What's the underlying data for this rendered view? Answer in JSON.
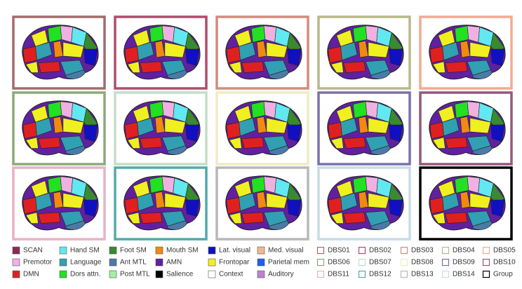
{
  "subjects": [
    {
      "label": "DBS01",
      "color": "#a26c6c"
    },
    {
      "label": "DBS02",
      "color": "#b04c6c"
    },
    {
      "label": "DBS03",
      "color": "#d28c7c"
    },
    {
      "label": "DBS04",
      "color": "#b8b88c"
    },
    {
      "label": "DBS05",
      "color": "#f2aa92"
    },
    {
      "label": "DBS06",
      "color": "#8aaa7a"
    },
    {
      "label": "DBS07",
      "color": "#c4dec8"
    },
    {
      "label": "DBS08",
      "color": "#f0ecc2"
    },
    {
      "label": "DBS09",
      "color": "#7a72aa"
    },
    {
      "label": "DBS10",
      "color": "#925a7a"
    },
    {
      "label": "DBS11",
      "color": "#e8b2c2"
    },
    {
      "label": "DBS12",
      "color": "#52aaaa"
    },
    {
      "label": "DBS13",
      "color": "#b8b8b8"
    },
    {
      "label": "DBS14",
      "color": "#c8dce6"
    },
    {
      "label": "Group",
      "color": "#000000"
    }
  ],
  "networks": [
    {
      "label": "SCAN",
      "color": "#8b2a5a"
    },
    {
      "label": "Premotor",
      "color": "#f0b0e2"
    },
    {
      "label": "DMN",
      "color": "#e02020"
    },
    {
      "label": "Hand SM",
      "color": "#62e8f0"
    },
    {
      "label": "Language",
      "color": "#30a0b2"
    },
    {
      "label": "Dors attn.",
      "color": "#22e022"
    },
    {
      "label": "Foot SM",
      "color": "#3a8a30"
    },
    {
      "label": "Ant MTL",
      "color": "#4a7aa8"
    },
    {
      "label": "Post MTL",
      "color": "#a2f0a2"
    },
    {
      "label": "Mouth SM",
      "color": "#f08a10"
    },
    {
      "label": "AMN",
      "color": "#6020a0"
    },
    {
      "label": "Salience",
      "color": "#000000"
    },
    {
      "label": "Lat. visual",
      "color": "#1010c0"
    },
    {
      "label": "Frontopar",
      "color": "#f0f020"
    },
    {
      "label": "Context",
      "color": "#ffffff"
    },
    {
      "label": "Med. visual",
      "color": "#f2b890"
    },
    {
      "label": "Parietal mem",
      "color": "#2060f0"
    },
    {
      "label": "Auditory",
      "color": "#c080d2"
    }
  ]
}
